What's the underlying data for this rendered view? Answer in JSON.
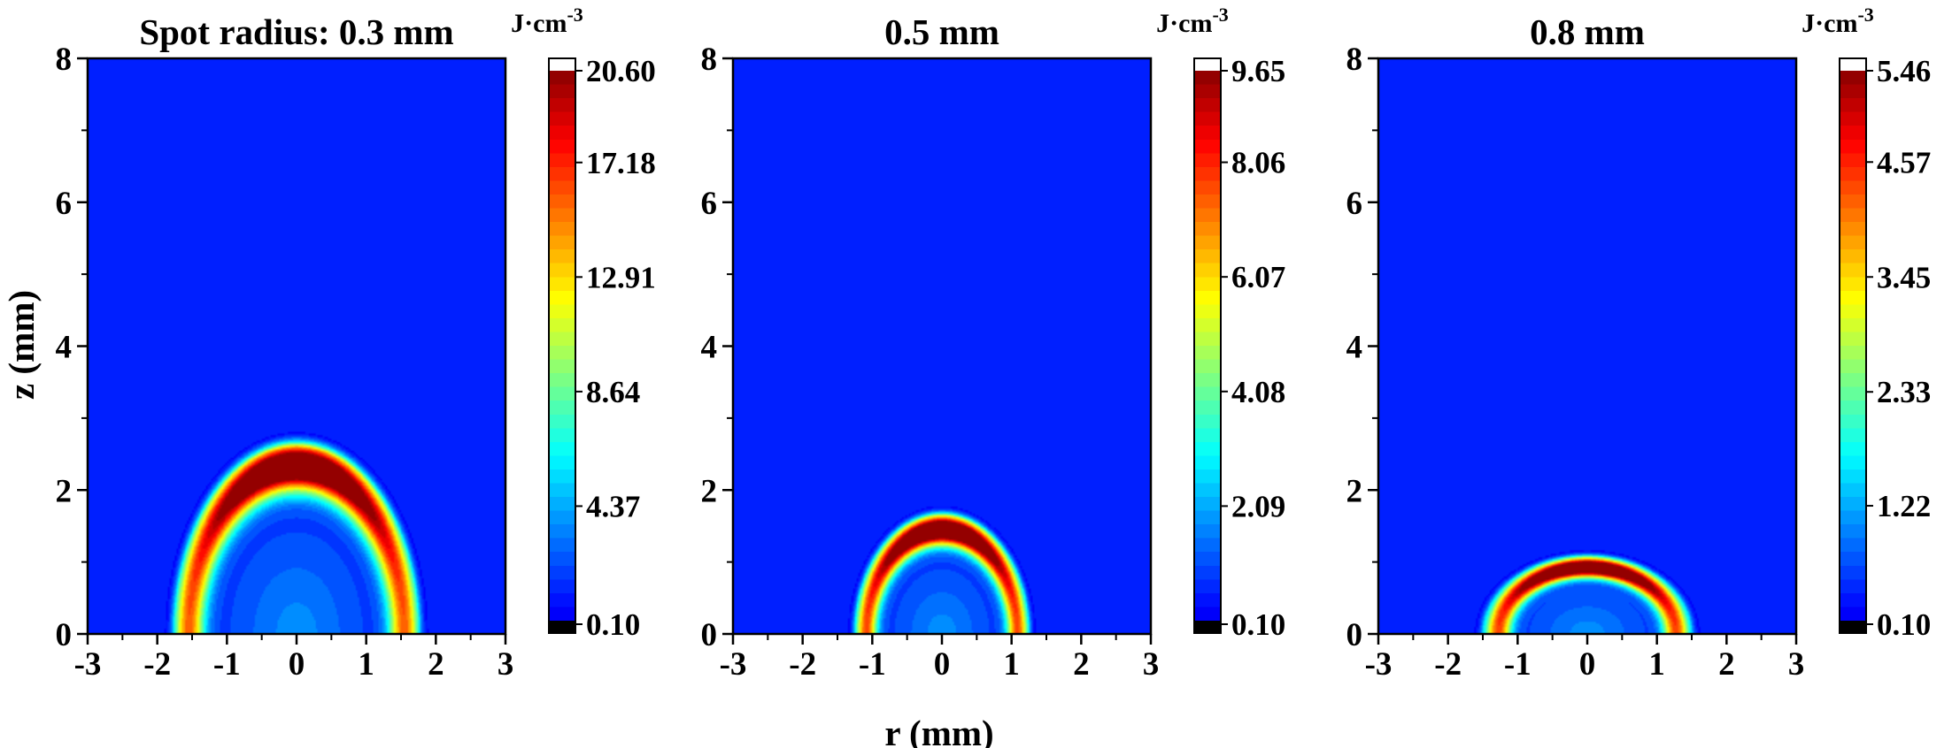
{
  "chart_data": [
    {
      "type": "heatmap",
      "title": "Spot radius: 0.3 mm",
      "xlim": [
        -3,
        3
      ],
      "ylim": [
        0,
        8
      ],
      "x_ticks": [
        "-3",
        "-2",
        "-1",
        "0",
        "1",
        "2",
        "3"
      ],
      "y_ticks": [
        "0",
        "2",
        "4",
        "6",
        "8"
      ],
      "colorbar": {
        "unit": "J·cm",
        "unit_sup": "-3",
        "min": 0.1,
        "max": 20.6,
        "tick_labels": [
          "20.60",
          "17.18",
          "12.91",
          "8.64",
          "4.37",
          "0.10"
        ]
      },
      "field": {
        "dome_radius_mm": 1.75,
        "dome_height_mm": 2.6,
        "peak_z_mm": 2.35,
        "peak_value": 20.6,
        "background_value": 0.1
      }
    },
    {
      "type": "heatmap",
      "title": "0.5 mm",
      "xlim": [
        -3,
        3
      ],
      "ylim": [
        0,
        8
      ],
      "x_ticks": [
        "-3",
        "-2",
        "-1",
        "0",
        "1",
        "2",
        "3"
      ],
      "y_ticks": [
        "0",
        "2",
        "4",
        "6",
        "8"
      ],
      "colorbar": {
        "unit": "J·cm",
        "unit_sup": "-3",
        "min": 0.1,
        "max": 9.65,
        "tick_labels": [
          "9.65",
          "8.06",
          "6.07",
          "4.08",
          "2.09",
          "0.10"
        ]
      },
      "field": {
        "dome_radius_mm": 1.25,
        "dome_height_mm": 1.65,
        "peak_z_mm": 1.45,
        "peak_value": 9.65,
        "background_value": 0.1
      }
    },
    {
      "type": "heatmap",
      "title": "0.8 mm",
      "xlim": [
        -3,
        3
      ],
      "ylim": [
        0,
        8
      ],
      "x_ticks": [
        "-3",
        "-2",
        "-1",
        "0",
        "1",
        "2",
        "3"
      ],
      "y_ticks": [
        "0",
        "2",
        "4",
        "6",
        "8"
      ],
      "colorbar": {
        "unit": "J·cm",
        "unit_sup": "-3",
        "min": 0.1,
        "max": 5.46,
        "tick_labels": [
          "5.46",
          "4.57",
          "3.45",
          "2.33",
          "1.22",
          "0.10"
        ]
      },
      "field": {
        "dome_radius_mm": 1.5,
        "dome_height_mm": 1.08,
        "peak_z_mm": 0.92,
        "peak_value": 5.46,
        "background_value": 0.1
      }
    }
  ],
  "shared": {
    "xlabel": "r (mm)",
    "ylabel": "z (mm)"
  }
}
